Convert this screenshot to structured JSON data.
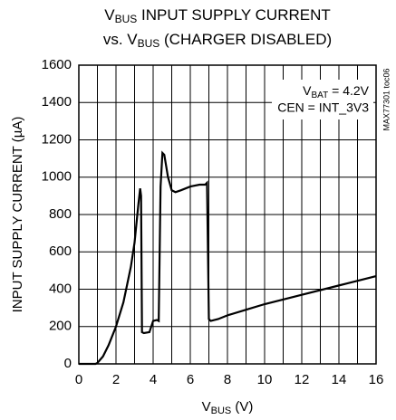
{
  "chart_data": {
    "type": "line",
    "title": {
      "line1": [
        "V",
        "BUS",
        " INPUT SUPPLY CURRENT"
      ],
      "line2": [
        "vs. V",
        "BUS",
        " (CHARGER DISABLED)"
      ]
    },
    "x_label": [
      "V",
      "BUS",
      " (V)"
    ],
    "y_label": "INPUT SUPPLY CURRENT (µA)",
    "annotations": {
      "vbat": [
        "V",
        "BAT",
        " = 4.2V"
      ],
      "cen": "CEN = INT_3V3",
      "code": "MAX77301 toc06"
    },
    "xlim": [
      0,
      16
    ],
    "xticks": [
      0,
      2,
      4,
      6,
      8,
      10,
      12,
      14,
      16
    ],
    "x_minor_grid": [
      1,
      3,
      5,
      7,
      9,
      11,
      13,
      15
    ],
    "ylim": [
      0,
      1600
    ],
    "yticks": [
      0,
      200,
      400,
      600,
      800,
      1000,
      1200,
      1400,
      1600
    ],
    "grid": true,
    "series": [
      {
        "color": "#000000",
        "x": [
          0,
          0.9,
          1.0,
          1.3,
          1.6,
          2.0,
          2.4,
          2.8,
          3.0,
          3.2,
          3.3,
          3.35,
          3.4,
          3.5,
          3.8,
          4.0,
          4.2,
          4.3,
          4.4,
          4.5,
          4.6,
          4.8,
          5.0,
          5.2,
          5.5,
          6.0,
          6.5,
          6.8,
          6.9,
          7.0,
          7.1,
          7.5,
          8,
          9,
          10,
          12,
          14,
          16
        ],
        "values": [
          0,
          0,
          5,
          40,
          100,
          200,
          330,
          520,
          650,
          850,
          940,
          900,
          170,
          165,
          170,
          230,
          235,
          230,
          950,
          1130,
          1120,
          1000,
          930,
          920,
          930,
          950,
          960,
          960,
          970,
          240,
          230,
          240,
          260,
          290,
          320,
          370,
          420,
          470
        ]
      }
    ]
  }
}
